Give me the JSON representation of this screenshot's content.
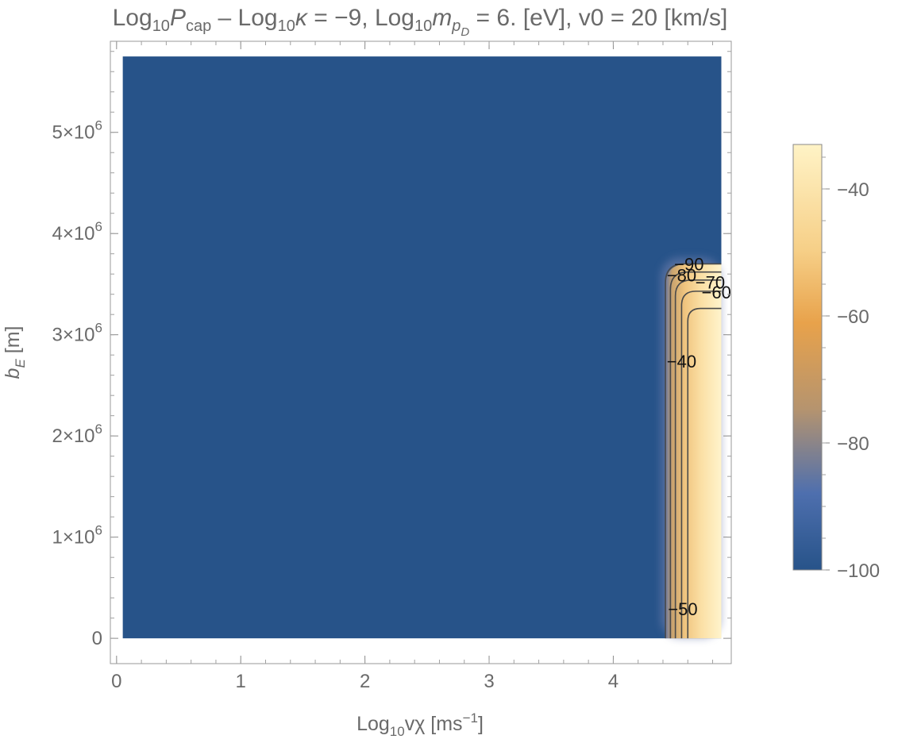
{
  "chart_data": {
    "type": "heatmap",
    "title": {
      "p1": "Log",
      "p1_sub": "10",
      "p2": "P",
      "p2_sub": "cap",
      "p3": " – Log",
      "p3_sub": "10",
      "p4": "κ",
      "p5": " = −9, Log",
      "p5_sub": "10",
      "p6": "m",
      "p6_sub": "p",
      "p6_subsub": "D",
      "p7": " = 6. [eV], v0 = 20 [km/s]"
    },
    "xlabel": {
      "a": "Log",
      "a_sub": "10",
      "b": "vχ [ms",
      "b_sup": "−1",
      "c": "]"
    },
    "ylabel": {
      "a": "b",
      "a_sub": "E",
      "b": " [m]"
    },
    "xlim": [
      -0.05,
      4.95
    ],
    "ylim": [
      -250000,
      5900000
    ],
    "data_extent": {
      "x": [
        0.05,
        4.87
      ],
      "y": [
        0,
        5750000
      ]
    },
    "x_ticks": [
      {
        "value": 0,
        "label": "0"
      },
      {
        "value": 1,
        "label": "1"
      },
      {
        "value": 2,
        "label": "2"
      },
      {
        "value": 3,
        "label": "3"
      },
      {
        "value": 4,
        "label": "4"
      }
    ],
    "y_ticks": [
      {
        "value": 0,
        "label": "0"
      },
      {
        "value": 1000000,
        "mant": "1",
        "label": "×10",
        "exp": "6"
      },
      {
        "value": 2000000,
        "mant": "2",
        "label": "×10",
        "exp": "6"
      },
      {
        "value": 3000000,
        "mant": "3",
        "label": "×10",
        "exp": "6"
      },
      {
        "value": 4000000,
        "mant": "4",
        "label": "×10",
        "exp": "6"
      },
      {
        "value": 5000000,
        "mant": "5",
        "label": "×10",
        "exp": "6"
      }
    ],
    "colorbar": {
      "min": -100,
      "max": -33,
      "ticks": [
        {
          "value": -40,
          "label": "−40"
        },
        {
          "value": -60,
          "label": "−60"
        },
        {
          "value": -80,
          "label": "−80"
        },
        {
          "value": -100,
          "label": "−100"
        }
      ],
      "colors": [
        {
          "stop": 0.0,
          "color": "#fff3c6"
        },
        {
          "stop": 0.25,
          "color": "#f6cf87"
        },
        {
          "stop": 0.42,
          "color": "#e8a24b"
        },
        {
          "stop": 0.62,
          "color": "#b6946e"
        },
        {
          "stop": 0.82,
          "color": "#4e6fae"
        },
        {
          "stop": 1.0,
          "color": "#275389"
        }
      ]
    },
    "background_value": -100,
    "contours": [
      {
        "level": -90,
        "x_edge": 4.42,
        "y_top": 3700000,
        "label": "−90",
        "label_at": [
          4.61,
          3700000
        ]
      },
      {
        "level": -80,
        "x_edge": 4.46,
        "y_top": 3620000,
        "label": "−80",
        "label_at": [
          4.55,
          3590000
        ]
      },
      {
        "level": -70,
        "x_edge": 4.5,
        "y_top": 3540000,
        "label": "−70",
        "label_at": [
          4.78,
          3520000
        ]
      },
      {
        "level": -60,
        "x_edge": 4.55,
        "y_top": 3430000,
        "label": "−60",
        "label_at": [
          4.83,
          3420000
        ]
      },
      {
        "level": -50,
        "x_edge": 4.6,
        "y_top": 3260000,
        "label": "−50",
        "label_at": [
          4.56,
          290000
        ]
      },
      {
        "level": -40,
        "x_edge": null,
        "y_top": null,
        "label": "−40",
        "label_at": [
          4.55,
          2740000
        ]
      }
    ]
  }
}
